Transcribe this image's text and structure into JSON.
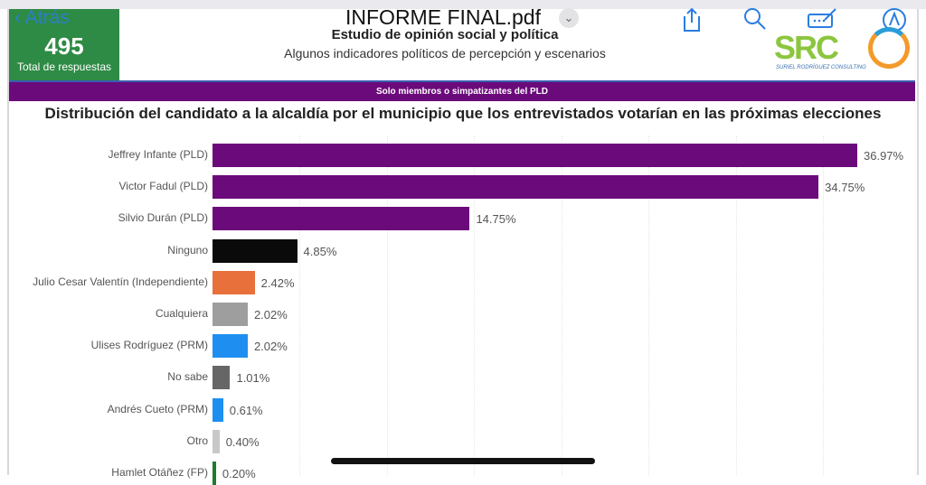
{
  "viewer": {
    "file_title": "INFORME FINAL.pdf",
    "back_label": "Atrás",
    "icons": [
      "share-icon",
      "search-icon",
      "markup-icon",
      "pen-icon"
    ]
  },
  "kpi": {
    "value": "495",
    "label": "Total de respuestas"
  },
  "header": {
    "title": "Estudio de opinión social y política",
    "subtitle": "Algunos indicadores políticos de percepción y escenarios",
    "logo_text": "SRC",
    "logo_sub": "SURIEL RODRÍGUEZ CONSULTING"
  },
  "band": "Solo miembros o simpatizantes del PLD",
  "chart_data": {
    "type": "bar",
    "orientation": "horizontal",
    "title": "Distribución del candidato a la alcaldía por el municipio que los entrevistados votarían en las próximas elecciones",
    "categories": [
      "Jeffrey Infante (PLD)",
      "Victor Fadul (PLD)",
      "Silvio Durán (PLD)",
      "Ninguno",
      "Julio Cesar Valentín (Independiente)",
      "Cualquiera",
      "Ulises Rodríguez (PRM)",
      "No sabe",
      "Andrés Cueto (PRM)",
      "Otro",
      "Hamlet Otáñez (FP)"
    ],
    "values": [
      36.97,
      34.75,
      14.75,
      4.85,
      2.42,
      2.02,
      2.02,
      1.01,
      0.61,
      0.4,
      0.2
    ],
    "labels": [
      "36.97%",
      "34.75%",
      "14.75%",
      "4.85%",
      "2.42%",
      "2.02%",
      "2.02%",
      "1.01%",
      "0.61%",
      "0.40%",
      "0.20%"
    ],
    "colors": [
      "#6b0a7a",
      "#6b0a7a",
      "#6b0a7a",
      "#0a0a0a",
      "#e8703a",
      "#9e9e9e",
      "#1e8ff0",
      "#666666",
      "#1e8ff0",
      "#c8c8c8",
      "#1f7a2e"
    ],
    "unit": "%"
  }
}
